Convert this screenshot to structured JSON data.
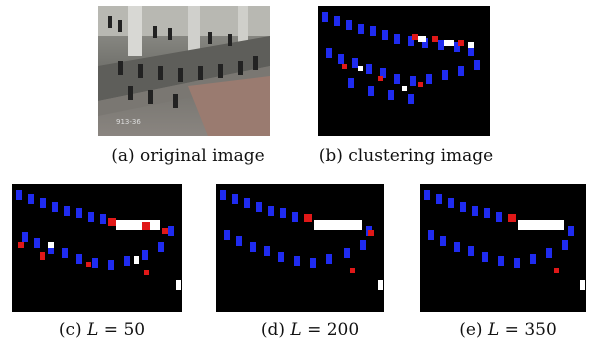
{
  "figure": {
    "panels": [
      {
        "id": "a",
        "caption": "(a) original image",
        "kind": "photo",
        "stamp": "913-36"
      },
      {
        "id": "b",
        "caption": "(b) clustering image",
        "kind": "cluster"
      },
      {
        "id": "c",
        "caption_prefix": "(c)",
        "param": "L",
        "value": "50",
        "kind": "cluster"
      },
      {
        "id": "d",
        "caption_prefix": "(d)",
        "param": "L",
        "value": "200",
        "kind": "cluster"
      },
      {
        "id": "e",
        "caption_prefix": "(e)",
        "param": "L",
        "value": "350",
        "kind": "cluster"
      }
    ],
    "colors": {
      "background": "#000000",
      "cluster_blue": "#1f2bf0",
      "cluster_red": "#e01818",
      "cluster_white": "#ffffff"
    }
  }
}
